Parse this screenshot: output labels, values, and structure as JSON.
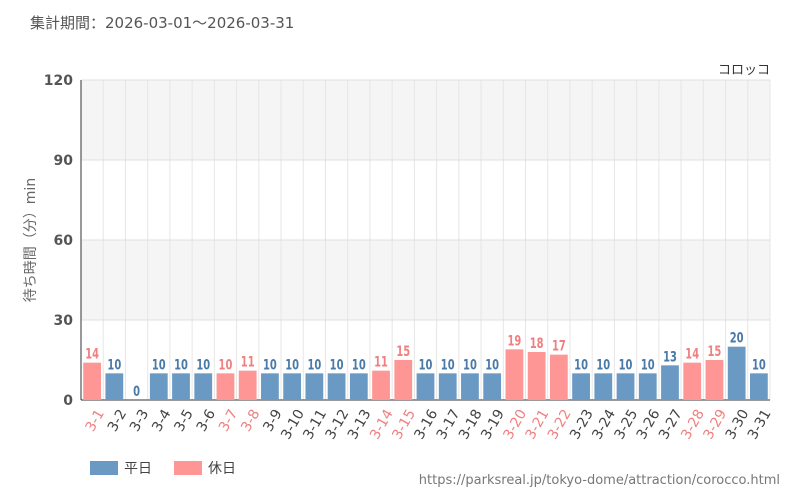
{
  "header": {
    "period": "集計期間：2026-03-01～2026-03-31"
  },
  "footer": {
    "credit": "https://parksreal.jp/tokyo-dome/attraction/corocco.html"
  },
  "colors": {
    "weekday": "#6a9ac4",
    "holiday": "#ff9696",
    "weekday_label": "#4a7aa8",
    "holiday_label": "#f08080"
  },
  "chart_data": {
    "type": "bar",
    "title": "コロッコ",
    "ylabel": "待ち時間（分）min",
    "ylim": [
      0,
      120
    ],
    "yticks": [
      0,
      30,
      60,
      90,
      120
    ],
    "grid": true,
    "legend_position": "bottom-left",
    "categories": [
      "3-1",
      "3-2",
      "3-3",
      "3-4",
      "3-5",
      "3-6",
      "3-7",
      "3-8",
      "3-9",
      "3-10",
      "3-11",
      "3-12",
      "3-13",
      "3-14",
      "3-15",
      "3-16",
      "3-17",
      "3-18",
      "3-19",
      "3-20",
      "3-21",
      "3-22",
      "3-23",
      "3-24",
      "3-25",
      "3-26",
      "3-27",
      "3-28",
      "3-29",
      "3-30",
      "3-31"
    ],
    "values": [
      14,
      10,
      0,
      10,
      10,
      10,
      10,
      11,
      10,
      10,
      10,
      10,
      10,
      11,
      15,
      10,
      10,
      10,
      10,
      19,
      18,
      17,
      10,
      10,
      10,
      10,
      13,
      14,
      15,
      20,
      10
    ],
    "day_type": [
      "holiday",
      "weekday",
      "weekday",
      "weekday",
      "weekday",
      "weekday",
      "holiday",
      "holiday",
      "weekday",
      "weekday",
      "weekday",
      "weekday",
      "weekday",
      "holiday",
      "holiday",
      "weekday",
      "weekday",
      "weekday",
      "weekday",
      "holiday",
      "holiday",
      "holiday",
      "weekday",
      "weekday",
      "weekday",
      "weekday",
      "weekday",
      "holiday",
      "holiday",
      "weekday",
      "weekday"
    ],
    "legend": [
      {
        "key": "weekday",
        "label": "平日"
      },
      {
        "key": "holiday",
        "label": "休日"
      }
    ]
  }
}
